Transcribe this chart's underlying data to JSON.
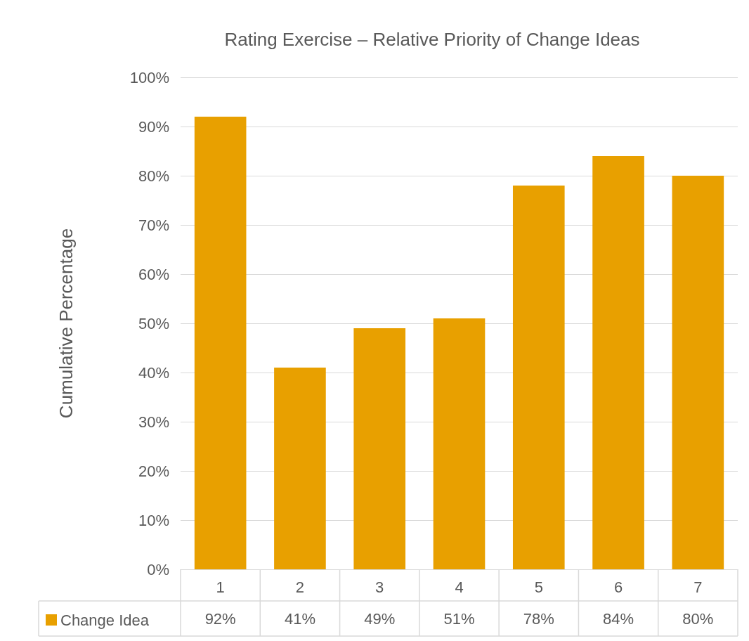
{
  "chart_data": {
    "type": "bar",
    "title": "Rating Exercise – Relative Priority of Change Ideas",
    "ylabel": "Cumulative Percentage",
    "categories": [
      "1",
      "2",
      "3",
      "4",
      "5",
      "6",
      "7"
    ],
    "series": [
      {
        "name": "Change Idea",
        "color": "#e8a000",
        "values": [
          92,
          41,
          49,
          51,
          78,
          84,
          80
        ],
        "value_labels": [
          "92%",
          "41%",
          "49%",
          "51%",
          "78%",
          "84%",
          "80%"
        ]
      }
    ],
    "ylim": [
      0,
      100
    ],
    "yticks": [
      {
        "value": 0,
        "label": "0%"
      },
      {
        "value": 10,
        "label": "10%"
      },
      {
        "value": 20,
        "label": "20%"
      },
      {
        "value": 30,
        "label": "30%"
      },
      {
        "value": 40,
        "label": "40%"
      },
      {
        "value": 50,
        "label": "50%"
      },
      {
        "value": 60,
        "label": "60%"
      },
      {
        "value": 70,
        "label": "70%"
      },
      {
        "value": 80,
        "label": "80%"
      },
      {
        "value": 90,
        "label": "90%"
      },
      {
        "value": 100,
        "label": "100%"
      }
    ],
    "grid": "y",
    "legend": "bottom left"
  }
}
